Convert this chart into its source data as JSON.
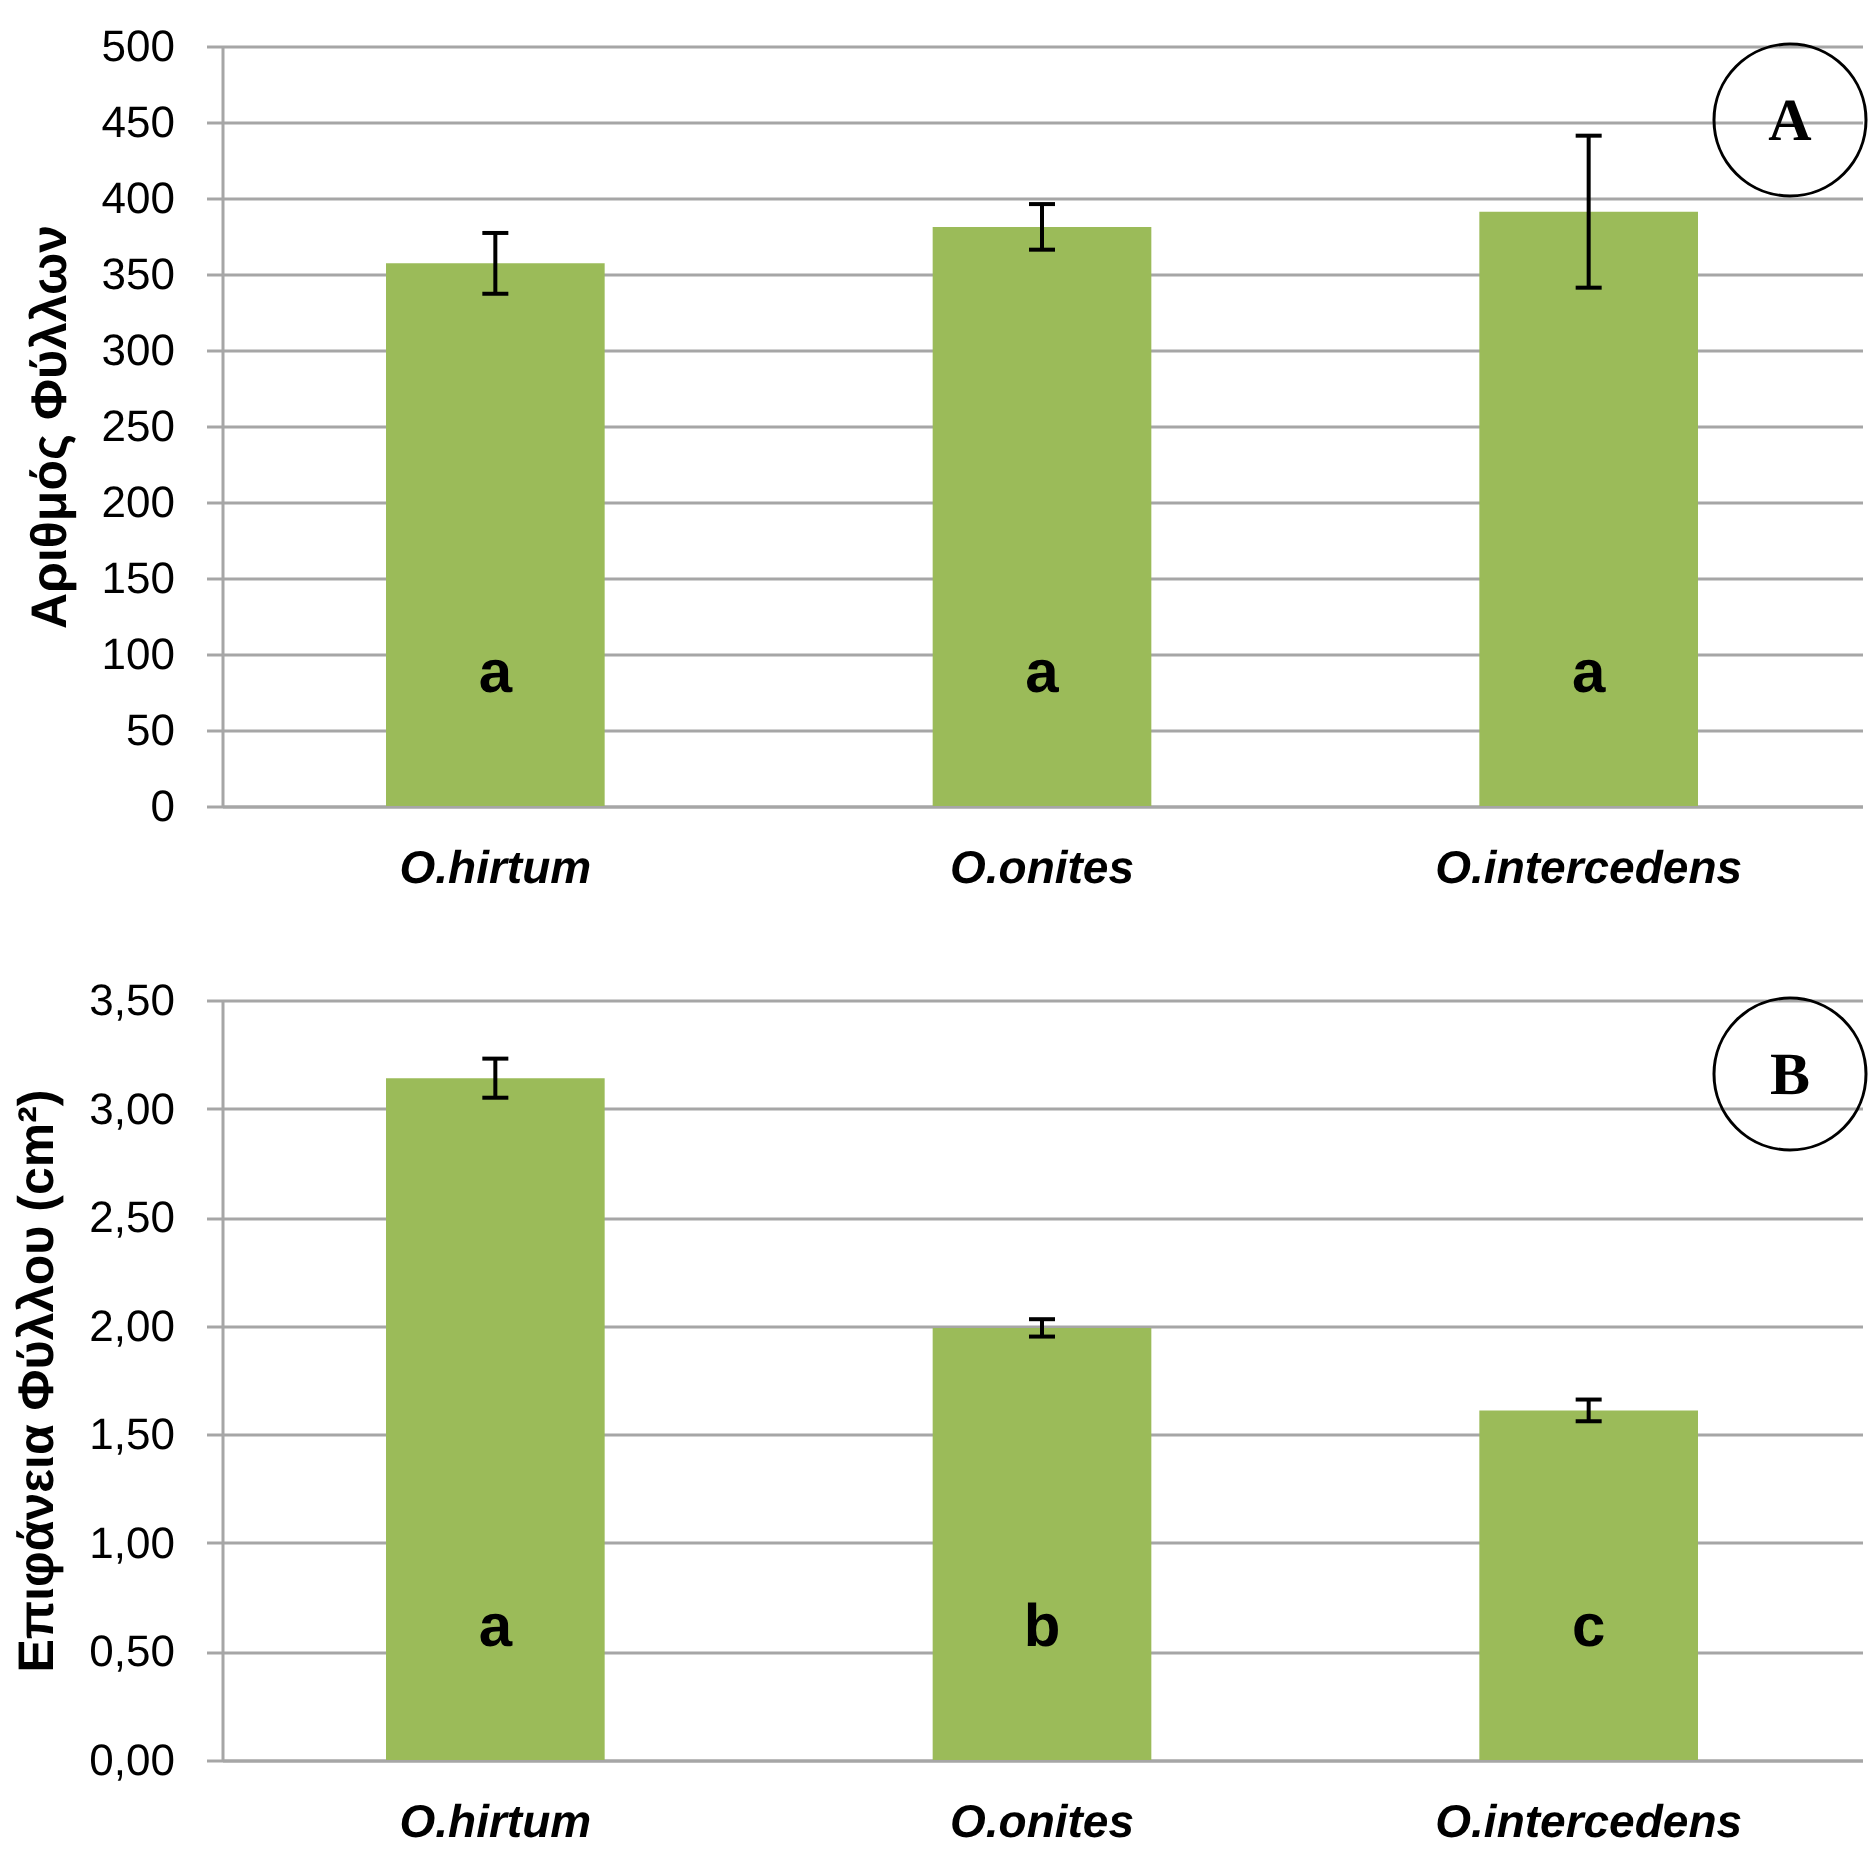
{
  "chart_data": [
    {
      "type": "bar",
      "title": "A",
      "ylabel": "Αριθμός Φύλλων",
      "categories": [
        "O.hirtum",
        "O.onites",
        "O.intercedens"
      ],
      "values": [
        357,
        381,
        391
      ],
      "errors": [
        20,
        15,
        50
      ],
      "color": "#9bbb59",
      "ylim": [
        0,
        500
      ],
      "yticks": [
        0,
        50,
        100,
        150,
        200,
        250,
        300,
        350,
        400,
        450,
        500
      ],
      "grid": "y",
      "annotations": [
        "a",
        "a",
        "a"
      ]
    },
    {
      "type": "bar",
      "title": "B",
      "ylabel": "Επιφάνεια Φύλλου (cm²)",
      "categories": [
        "O.hirtum",
        "O.onites",
        "O.intercedens"
      ],
      "values": [
        3.14,
        1.99,
        1.61
      ],
      "errors": [
        0.09,
        0.04,
        0.05
      ],
      "color": "#9bbb59",
      "ylim": [
        0,
        3.5
      ],
      "yticks": [
        {
          "value": 0,
          "label": "0,00"
        },
        {
          "value": 0.5,
          "label": "0,50"
        },
        {
          "value": 1,
          "label": "1,00"
        },
        {
          "value": 1.5,
          "label": "1,50"
        },
        {
          "value": 2,
          "label": "2,00"
        },
        {
          "value": 2.5,
          "label": "2,50"
        },
        {
          "value": 3,
          "label": "3,00"
        },
        {
          "value": 3.5,
          "label": "3,50"
        }
      ],
      "grid": "y",
      "annotations": [
        "a",
        "b",
        "c"
      ]
    }
  ]
}
